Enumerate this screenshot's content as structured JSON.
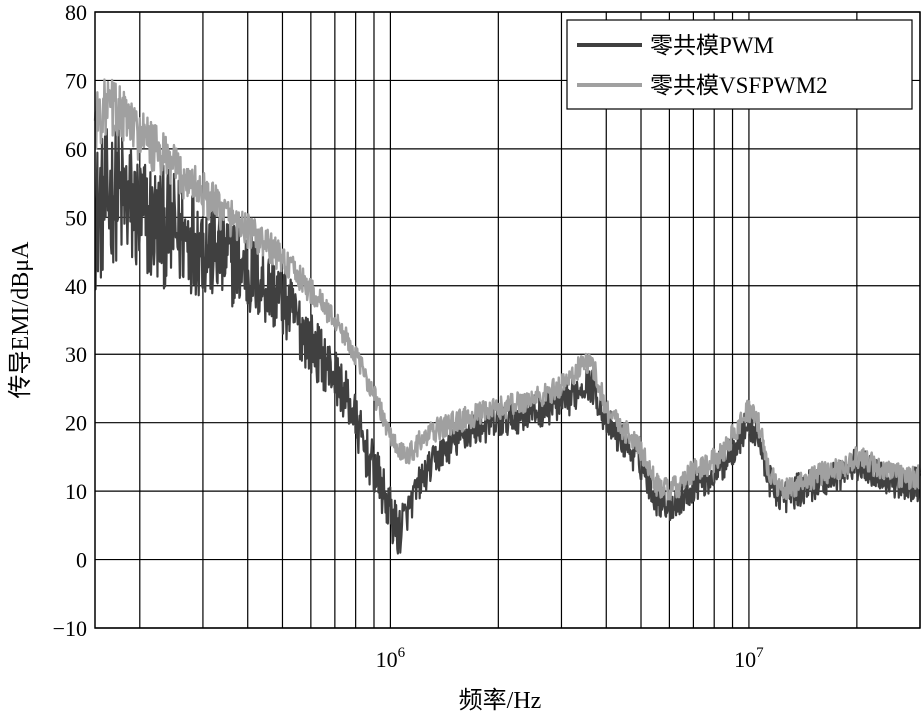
{
  "chart_data": {
    "type": "line",
    "title": "",
    "xlabel": "频率/Hz",
    "ylabel": "传导EMI/dBμA",
    "xscale": "log",
    "xlim": [
      150000,
      30000000
    ],
    "ylim": [
      -10,
      80
    ],
    "grid": true,
    "legend_position": "top-right",
    "x_tick_labels": [
      {
        "x": 1000000,
        "base": "10",
        "exp": "6"
      },
      {
        "x": 10000000,
        "base": "10",
        "exp": "7"
      }
    ],
    "y_ticks": [
      -10,
      0,
      10,
      20,
      30,
      40,
      50,
      60,
      70,
      80
    ],
    "y_tick_labels": [
      "−10",
      "0",
      "10",
      "20",
      "30",
      "40",
      "50",
      "60",
      "70",
      "80"
    ],
    "series": [
      {
        "name": "零共模PWM",
        "color": "#404040",
        "x": [
          150000,
          160000,
          170000,
          185000,
          200000,
          220000,
          250000,
          280000,
          320000,
          360000,
          400000,
          450000,
          500000,
          560000,
          630000,
          700000,
          780000,
          850000,
          920000,
          980000,
          1050000,
          1100000,
          1200000,
          1350000,
          1500000,
          1700000,
          2000000,
          2300000,
          2700000,
          3100000,
          3500000,
          3700000,
          4000000,
          4500000,
          5000000,
          5500000,
          6000000,
          6500000,
          7000000,
          7800000,
          8500000,
          9200000,
          10000000,
          10600000,
          11500000,
          12500000,
          13500000,
          15000000,
          17000000,
          19000000,
          20000000,
          22000000,
          24000000,
          27000000,
          30000000
        ],
        "y": [
          50,
          52,
          54,
          52,
          50,
          49,
          48,
          47,
          45,
          44,
          42,
          40,
          38,
          34,
          30,
          27,
          22,
          16,
          12,
          8,
          4,
          6,
          11,
          15,
          17,
          19,
          20,
          21,
          22,
          23,
          26,
          25,
          20,
          17,
          14,
          9,
          8,
          9,
          11,
          12,
          14,
          17,
          20,
          18,
          11,
          9,
          10,
          11,
          12,
          13,
          14,
          13,
          12,
          11,
          11
        ]
      },
      {
        "name": "零共模VSFPWM2",
        "color": "#a0a0a0",
        "x": [
          150000,
          160000,
          170000,
          185000,
          200000,
          220000,
          250000,
          280000,
          320000,
          360000,
          400000,
          450000,
          500000,
          560000,
          630000,
          700000,
          780000,
          850000,
          920000,
          980000,
          1050000,
          1100000,
          1200000,
          1350000,
          1500000,
          1700000,
          2000000,
          2300000,
          2700000,
          3100000,
          3500000,
          3700000,
          4000000,
          4500000,
          5000000,
          5500000,
          6000000,
          6500000,
          7000000,
          7800000,
          8500000,
          9200000,
          10000000,
          10600000,
          11500000,
          12500000,
          13500000,
          15000000,
          17000000,
          19000000,
          20000000,
          22000000,
          24000000,
          27000000,
          30000000
        ],
        "y": [
          64,
          66,
          66,
          64,
          62,
          60,
          57,
          55,
          52,
          50,
          48,
          46,
          44,
          41,
          38,
          35,
          31,
          27,
          23,
          19,
          16,
          15,
          17,
          19,
          20,
          21,
          22,
          23,
          24,
          26,
          29,
          28,
          22,
          19,
          16,
          11,
          10,
          11,
          13,
          14,
          16,
          19,
          22,
          20,
          12,
          10,
          11,
          12,
          13,
          14,
          15,
          14,
          13,
          12,
          12
        ]
      }
    ]
  }
}
